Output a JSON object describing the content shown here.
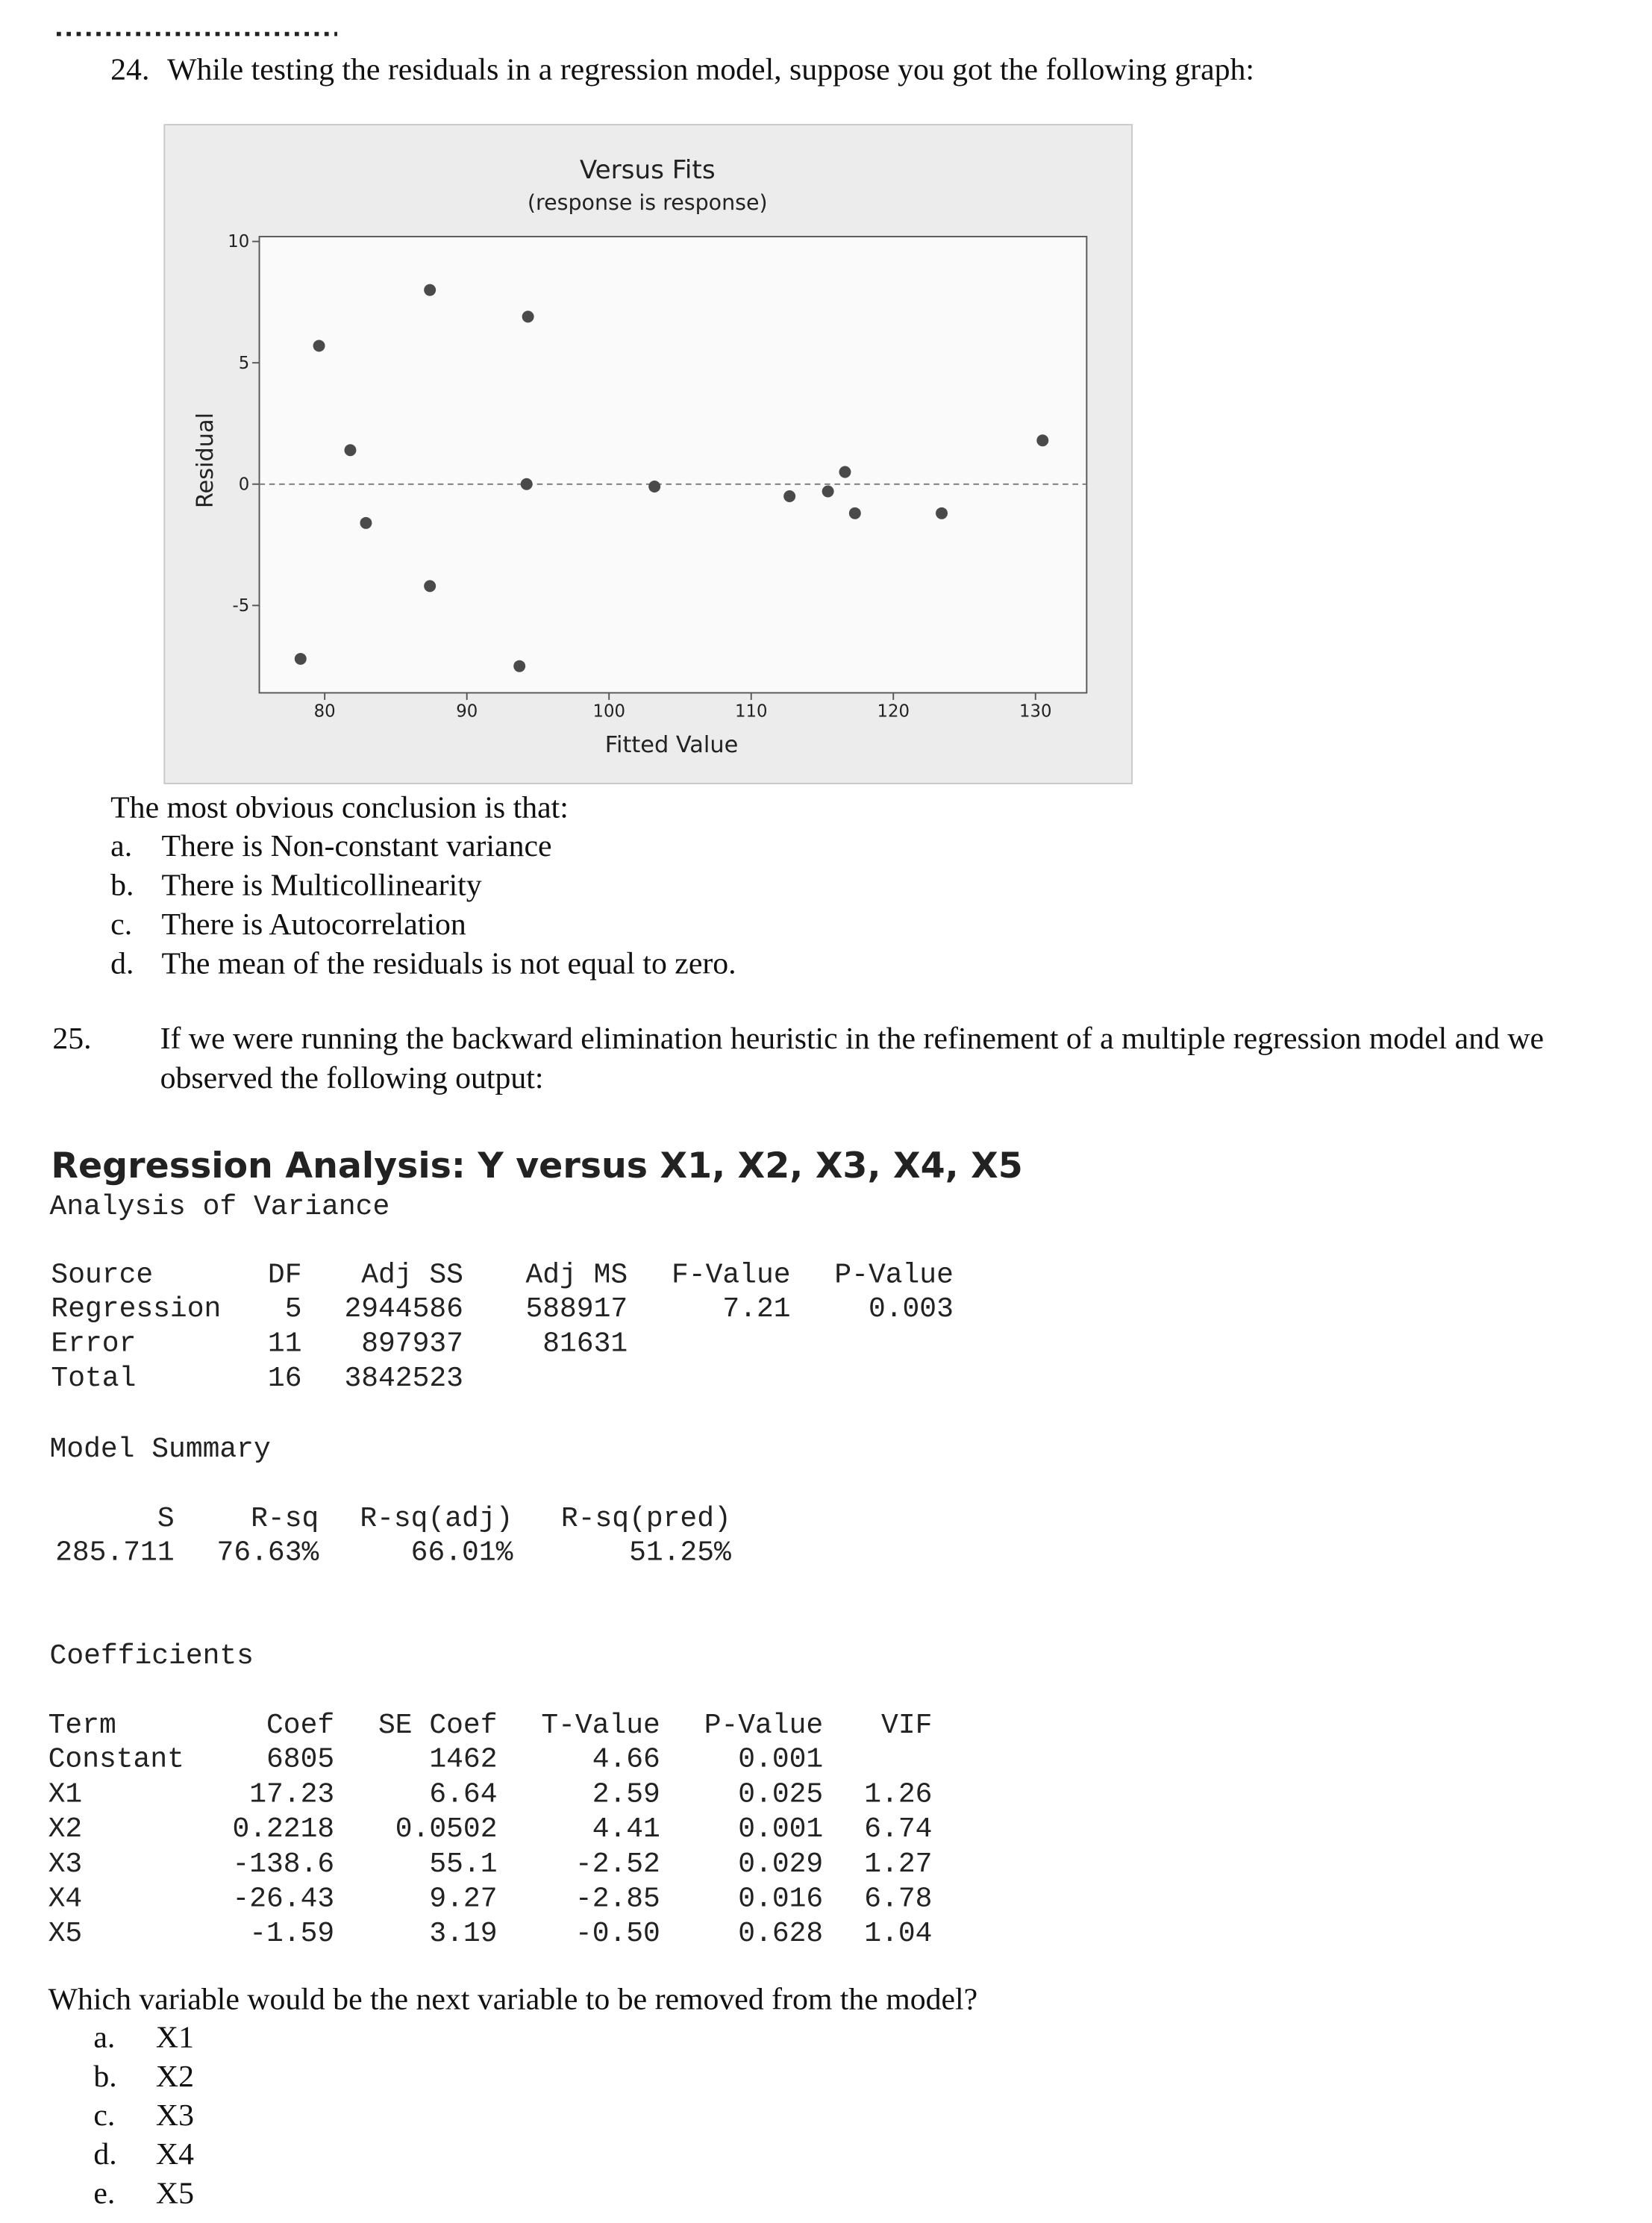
{
  "question_24": {
    "number": "24.",
    "text": "While testing the residuals in a regression model, suppose you got the following graph:",
    "prompt": "The most obvious conclusion is that:",
    "options": [
      {
        "letter": "a.",
        "text": "There is Non-constant variance"
      },
      {
        "letter": "b.",
        "text": "There is Multicollinearity"
      },
      {
        "letter": "c.",
        "text": "There is Autocorrelation"
      },
      {
        "letter": "d.",
        "text": "The mean of the residuals is not equal to zero."
      }
    ]
  },
  "chart_data": {
    "type": "scatter",
    "title": "Versus Fits",
    "subtitle": "(response is response)",
    "x_label": "Fitted Value",
    "y_label": "Residual",
    "x": [
      78.3,
      79.6,
      81.8,
      82.9,
      87.4,
      87.4,
      94.3,
      94.2,
      93.7,
      103.2,
      112.7,
      115.4,
      116.6,
      117.3,
      123.4,
      130.5
    ],
    "values": [
      -7.2,
      5.7,
      1.4,
      -1.6,
      8.0,
      -4.2,
      6.9,
      0.0,
      -7.5,
      -0.1,
      -0.5,
      -0.3,
      0.5,
      -1.2,
      -1.2,
      1.8
    ],
    "color": "#4a4a4a",
    "xlim": [
      75.4,
      133.6
    ],
    "ylim": [
      -8.6,
      10.2
    ],
    "xticks": [
      80,
      90,
      100,
      110,
      120,
      130
    ],
    "yticks": [
      -5,
      0,
      5,
      10
    ],
    "reference_line": 0
  },
  "question_25": {
    "number": "25.",
    "text_lines": [
      "If we were running the backward elimination heuristic in the refinement of a multiple regression model and we",
      "observed  the following output:"
    ],
    "prompt": "Which variable would be the next variable to be removed from the model?",
    "options": [
      {
        "letter": "a.",
        "text": "X1"
      },
      {
        "letter": "b.",
        "text": "X2"
      },
      {
        "letter": "c.",
        "text": "X3"
      },
      {
        "letter": "d.",
        "text": "X4"
      },
      {
        "letter": "e.",
        "text": "X5"
      }
    ]
  },
  "output": {
    "title": "Regression Analysis: Y versus X1, X2, X3, X4, X5",
    "anova": {
      "heading": "Analysis of Variance",
      "columns": [
        "Source",
        "DF",
        "Adj SS",
        "Adj MS",
        "F-Value",
        "P-Value"
      ],
      "rows": [
        [
          "Regression",
          "5",
          "2944586",
          "588917",
          "7.21",
          "0.003"
        ],
        [
          "Error",
          "11",
          "897937",
          "81631",
          null,
          null
        ],
        [
          "Total",
          "16",
          "3842523",
          null,
          null,
          null
        ]
      ]
    },
    "model_summary": {
      "heading": "Model Summary",
      "columns": [
        "S",
        "R-sq",
        "R-sq(adj)",
        "R-sq(pred)"
      ],
      "rows": [
        [
          "285.711",
          "76.63%",
          "66.01%",
          "51.25%"
        ]
      ]
    },
    "coefficients": {
      "heading": "Coefficients",
      "columns": [
        "Term",
        "Coef",
        "SE Coef",
        "T-Value",
        "P-Value",
        "VIF"
      ],
      "rows": [
        [
          "Constant",
          "6805",
          "1462",
          "4.66",
          "0.001",
          null
        ],
        [
          "X1",
          "17.23",
          "6.64",
          "2.59",
          "0.025",
          "1.26"
        ],
        [
          "X2",
          "0.2218",
          "0.0502",
          "4.41",
          "0.001",
          "6.74"
        ],
        [
          "X3",
          "-138.6",
          "55.1",
          "-2.52",
          "0.029",
          "1.27"
        ],
        [
          "X4",
          "-26.43",
          "9.27",
          "-2.85",
          "0.016",
          "6.78"
        ],
        [
          "X5",
          "-1.59",
          "3.19",
          "-0.50",
          "0.628",
          "1.04"
        ]
      ]
    }
  }
}
